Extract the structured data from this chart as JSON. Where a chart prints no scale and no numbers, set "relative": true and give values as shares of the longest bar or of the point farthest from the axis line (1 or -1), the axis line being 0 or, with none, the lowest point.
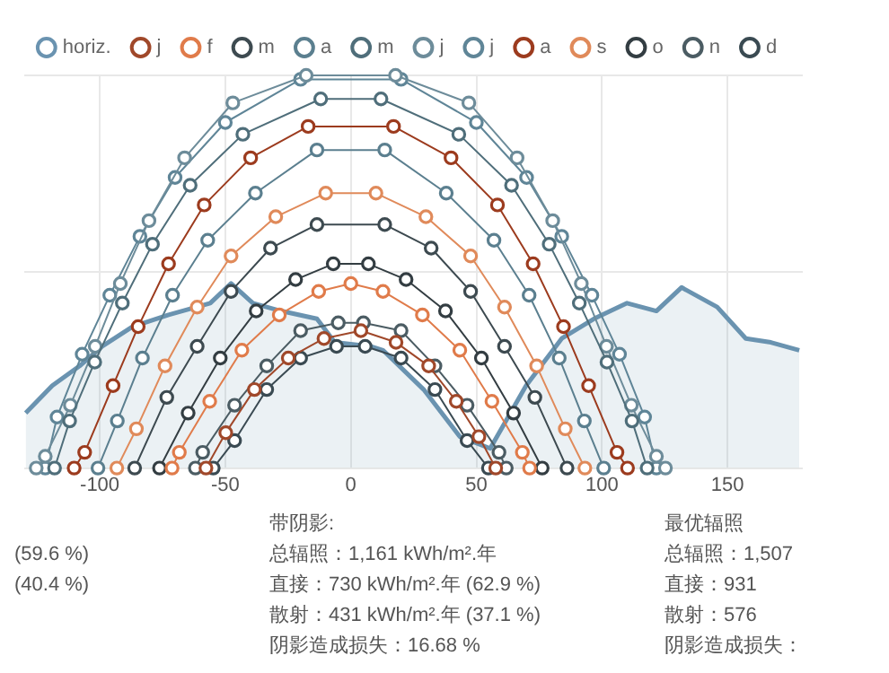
{
  "chart_data": {
    "type": "line",
    "relative": true,
    "legend": "top",
    "marker": "circle",
    "grid": true,
    "xlim": [
      -130,
      180
    ],
    "xticks": [
      -100,
      -50,
      0,
      50,
      100,
      150
    ],
    "annotations": [
      "(59.6 %)",
      "(40.4 %)",
      "带阴影:",
      "总辐照：1,161 kWh/m².年",
      "直接：730 kWh/m².年 (62.9 %)",
      "散射：431 kWh/m².年 (37.1 %)",
      "阴影造成损失：16.68 %",
      "最优辐照",
      "总辐照：1,507",
      "直接：931",
      "散射：576",
      "阴影造成损失："
    ],
    "series": [
      {
        "name": "horiz.",
        "type": "area",
        "marker": "none",
        "color": "#6a93b0",
        "x": [
          -129.5,
          -118.9,
          -108,
          -99,
          -87,
          -72.6,
          -56,
          -47.7,
          -39,
          -27.8,
          -13.5,
          -6.4,
          7.8,
          12.8,
          29,
          43.4,
          55.5,
          69.8,
          84,
          96.8,
          110,
          121.7,
          131.7,
          145.9,
          157.3,
          167.3,
          178.6
        ],
        "values": [
          0.14,
          0.21,
          0.26,
          0.31,
          0.36,
          0.39,
          0.42,
          0.47,
          0.42,
          0.4,
          0.38,
          0.32,
          0.31,
          0.3,
          0.2,
          0.08,
          0.05,
          0.21,
          0.33,
          0.38,
          0.42,
          0.4,
          0.46,
          0.41,
          0.33,
          0.32,
          0.3
        ]
      },
      {
        "name": "j",
        "color": "#a0482a",
        "x": [
          -57.7,
          -49.8,
          -38.4,
          -24.9,
          -10.7,
          4,
          18,
          31,
          42,
          51,
          57.7
        ],
        "values": [
          0,
          0.09,
          0.2,
          0.28,
          0.33,
          0.35,
          0.32,
          0.26,
          0.17,
          0.08,
          0
        ]
      },
      {
        "name": "f",
        "color": "#e07b4a",
        "x": [
          -71.2,
          -68.3,
          -56.2,
          -43.4,
          -28.5,
          -12.8,
          0,
          12.8,
          28.5,
          43.4,
          56.2,
          68.3,
          71.2
        ],
        "values": [
          0,
          0.04,
          0.17,
          0.3,
          0.39,
          0.45,
          0.47,
          0.45,
          0.39,
          0.3,
          0.17,
          0.04,
          0
        ]
      },
      {
        "name": "m",
        "color": "#3d4a50",
        "x": [
          -86.1,
          -73.3,
          -61.2,
          -47.7,
          -32,
          -13.5,
          13.5,
          32,
          47.7,
          61.2,
          73.3,
          86.1
        ],
        "values": [
          0,
          0.18,
          0.31,
          0.45,
          0.56,
          0.62,
          0.62,
          0.56,
          0.45,
          0.31,
          0.18,
          0
        ]
      },
      {
        "name": "a",
        "color": "#5b7f8f",
        "x": [
          -100.7,
          -93,
          -83,
          -71,
          -57,
          -38,
          -13.5,
          13.5,
          38,
          57,
          71,
          83,
          93,
          100.7
        ],
        "values": [
          0,
          0.12,
          0.28,
          0.44,
          0.58,
          0.7,
          0.81,
          0.81,
          0.7,
          0.58,
          0.44,
          0.28,
          0.12,
          0
        ]
      },
      {
        "name": "m",
        "color": "#4f6e7a",
        "x": [
          -118,
          -112,
          -102,
          -91,
          -79,
          -64,
          -43,
          -12,
          12,
          43,
          64,
          79,
          91,
          102,
          112,
          118
        ],
        "values": [
          0,
          0.12,
          0.27,
          0.42,
          0.57,
          0.72,
          0.85,
          0.94,
          0.94,
          0.85,
          0.72,
          0.57,
          0.42,
          0.27,
          0.12,
          0
        ]
      },
      {
        "name": "j",
        "color": "#6d8c9a",
        "x": [
          -125.3,
          -121.7,
          -111.7,
          -101.8,
          -91.8,
          -80.4,
          -66.2,
          -47,
          -17.8,
          17.8,
          47,
          66.2,
          80.4,
          91.8,
          101.8,
          111.7,
          121.7,
          125.3
        ],
        "values": [
          0,
          0.03,
          0.16,
          0.31,
          0.47,
          0.63,
          0.79,
          0.93,
          1,
          1,
          0.93,
          0.79,
          0.63,
          0.47,
          0.31,
          0.16,
          0.03,
          0
        ]
      },
      {
        "name": "j",
        "color": "#5f8597",
        "x": [
          -121.7,
          -117,
          -107,
          -96,
          -84,
          -70,
          -50,
          -20,
          20,
          50,
          70,
          84,
          96,
          107,
          117,
          121.7
        ],
        "values": [
          0,
          0.13,
          0.29,
          0.44,
          0.59,
          0.74,
          0.88,
          0.99,
          0.99,
          0.88,
          0.74,
          0.59,
          0.44,
          0.29,
          0.13,
          0
        ]
      },
      {
        "name": "a",
        "color": "#9c3b1e",
        "x": [
          -110.2,
          -106,
          -94.7,
          -84.7,
          -72.6,
          -58.4,
          -39.9,
          -17,
          17,
          39.9,
          58.4,
          72.6,
          84.7,
          94.7,
          106,
          110.2
        ],
        "values": [
          0,
          0.04,
          0.21,
          0.36,
          0.52,
          0.67,
          0.79,
          0.87,
          0.87,
          0.79,
          0.67,
          0.52,
          0.36,
          0.21,
          0.04,
          0
        ]
      },
      {
        "name": "s",
        "color": "#e08a5a",
        "x": [
          -93.2,
          -85.4,
          -74,
          -61.2,
          -47.7,
          -29.9,
          -10,
          10,
          29.9,
          47.7,
          61.2,
          74,
          85.4,
          93.2
        ],
        "values": [
          0,
          0.1,
          0.26,
          0.41,
          0.54,
          0.64,
          0.7,
          0.7,
          0.64,
          0.54,
          0.41,
          0.26,
          0.1,
          0
        ]
      },
      {
        "name": "o",
        "color": "#333d42",
        "x": [
          -76.2,
          -64.8,
          -52,
          -37.7,
          -22,
          -7,
          7,
          22,
          37.7,
          52,
          64.8,
          76.2
        ],
        "values": [
          0,
          0.14,
          0.28,
          0.4,
          0.48,
          0.52,
          0.52,
          0.48,
          0.4,
          0.28,
          0.14,
          0
        ]
      },
      {
        "name": "n",
        "color": "#4b5c63",
        "x": [
          -61.9,
          -59,
          -46.3,
          -33.5,
          -20,
          -5,
          5,
          20,
          33.5,
          46.3,
          59,
          61.9
        ],
        "values": [
          0,
          0.04,
          0.16,
          0.26,
          0.35,
          0.37,
          0.37,
          0.35,
          0.26,
          0.16,
          0.04,
          0
        ]
      },
      {
        "name": "d",
        "color": "#3a4a52",
        "x": [
          -54.8,
          -46.3,
          -33.5,
          -20,
          -5.7,
          5.7,
          20,
          33.5,
          46.3,
          54.8
        ],
        "values": [
          0,
          0.07,
          0.2,
          0.28,
          0.31,
          0.31,
          0.28,
          0.2,
          0.07,
          0
        ]
      }
    ]
  }
}
